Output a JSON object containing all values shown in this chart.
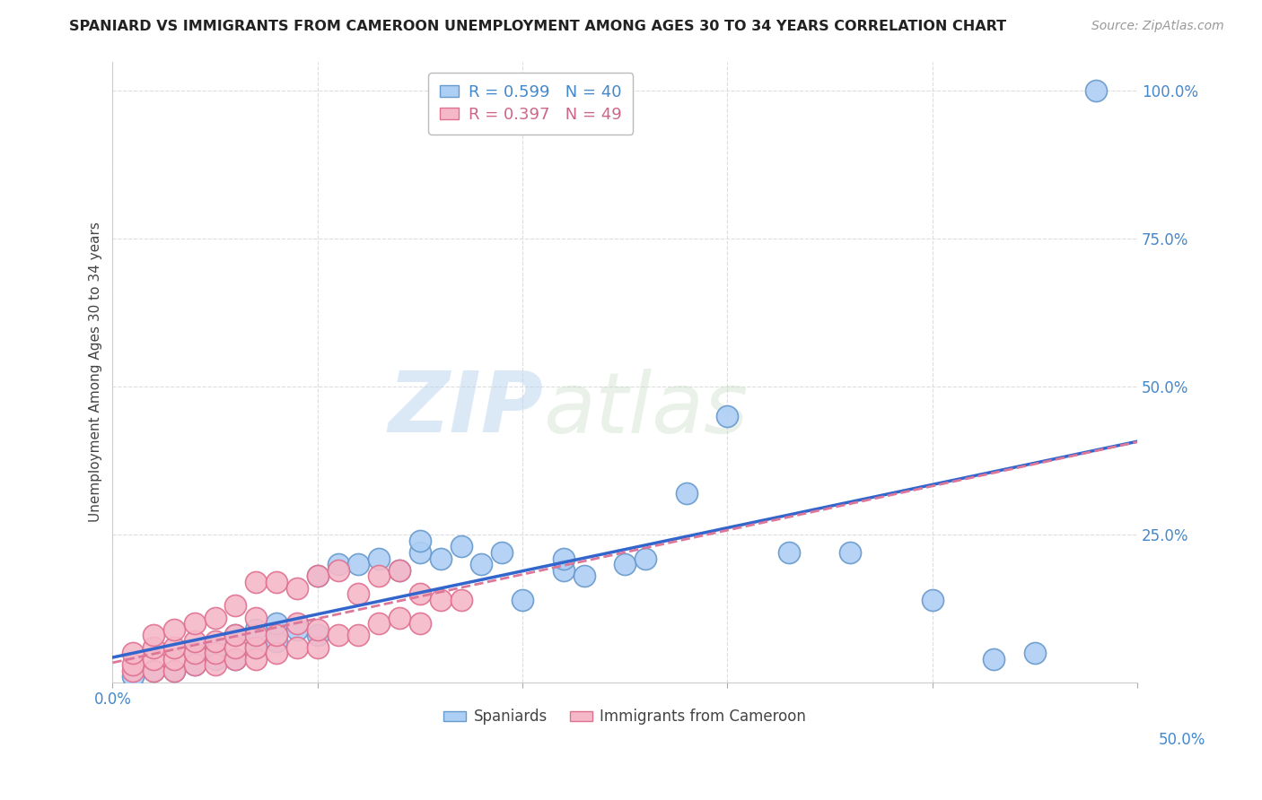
{
  "title": "SPANIARD VS IMMIGRANTS FROM CAMEROON UNEMPLOYMENT AMONG AGES 30 TO 34 YEARS CORRELATION CHART",
  "source": "Source: ZipAtlas.com",
  "ylabel": "Unemployment Among Ages 30 to 34 years",
  "xlim": [
    0,
    0.5
  ],
  "ylim": [
    0,
    1.05
  ],
  "xticks": [
    0.0,
    0.1,
    0.2,
    0.3,
    0.4,
    0.5
  ],
  "yticks": [
    0.0,
    0.25,
    0.5,
    0.75,
    1.0
  ],
  "spaniard_color": "#aecff5",
  "spaniard_edge_color": "#6699cc",
  "cameroon_color": "#f5b8c8",
  "cameroon_edge_color": "#e07090",
  "trend_blue": "#3366cc",
  "trend_pink": "#dd7799",
  "R_spaniard": 0.599,
  "N_spaniard": 40,
  "R_cameroon": 0.397,
  "N_cameroon": 49,
  "watermark_zip": "ZIP",
  "watermark_atlas": "atlas",
  "background_color": "#ffffff",
  "grid_color": "#dddddd",
  "spaniard_x": [
    0.01,
    0.02,
    0.03,
    0.04,
    0.04,
    0.05,
    0.05,
    0.06,
    0.06,
    0.07,
    0.07,
    0.08,
    0.08,
    0.09,
    0.1,
    0.1,
    0.11,
    0.12,
    0.13,
    0.14,
    0.15,
    0.15,
    0.16,
    0.17,
    0.18,
    0.19,
    0.2,
    0.22,
    0.22,
    0.23,
    0.25,
    0.26,
    0.28,
    0.3,
    0.33,
    0.36,
    0.4,
    0.43,
    0.45,
    0.48
  ],
  "spaniard_y": [
    0.01,
    0.02,
    0.02,
    0.03,
    0.05,
    0.04,
    0.06,
    0.04,
    0.08,
    0.06,
    0.09,
    0.07,
    0.1,
    0.09,
    0.08,
    0.18,
    0.2,
    0.2,
    0.21,
    0.19,
    0.22,
    0.24,
    0.21,
    0.23,
    0.2,
    0.22,
    0.14,
    0.19,
    0.21,
    0.18,
    0.2,
    0.21,
    0.32,
    0.45,
    0.22,
    0.22,
    0.14,
    0.04,
    0.05,
    1.0
  ],
  "cameroon_x": [
    0.01,
    0.01,
    0.01,
    0.02,
    0.02,
    0.02,
    0.02,
    0.03,
    0.03,
    0.03,
    0.03,
    0.04,
    0.04,
    0.04,
    0.04,
    0.05,
    0.05,
    0.05,
    0.05,
    0.06,
    0.06,
    0.06,
    0.06,
    0.07,
    0.07,
    0.07,
    0.07,
    0.07,
    0.08,
    0.08,
    0.08,
    0.09,
    0.09,
    0.09,
    0.1,
    0.1,
    0.1,
    0.11,
    0.11,
    0.12,
    0.12,
    0.13,
    0.13,
    0.14,
    0.14,
    0.15,
    0.15,
    0.16,
    0.17
  ],
  "cameroon_y": [
    0.02,
    0.03,
    0.05,
    0.02,
    0.04,
    0.06,
    0.08,
    0.02,
    0.04,
    0.06,
    0.09,
    0.03,
    0.05,
    0.07,
    0.1,
    0.03,
    0.05,
    0.07,
    0.11,
    0.04,
    0.06,
    0.08,
    0.13,
    0.04,
    0.06,
    0.08,
    0.11,
    0.17,
    0.05,
    0.08,
    0.17,
    0.06,
    0.1,
    0.16,
    0.06,
    0.09,
    0.18,
    0.08,
    0.19,
    0.08,
    0.15,
    0.1,
    0.18,
    0.11,
    0.19,
    0.1,
    0.15,
    0.14,
    0.14
  ]
}
